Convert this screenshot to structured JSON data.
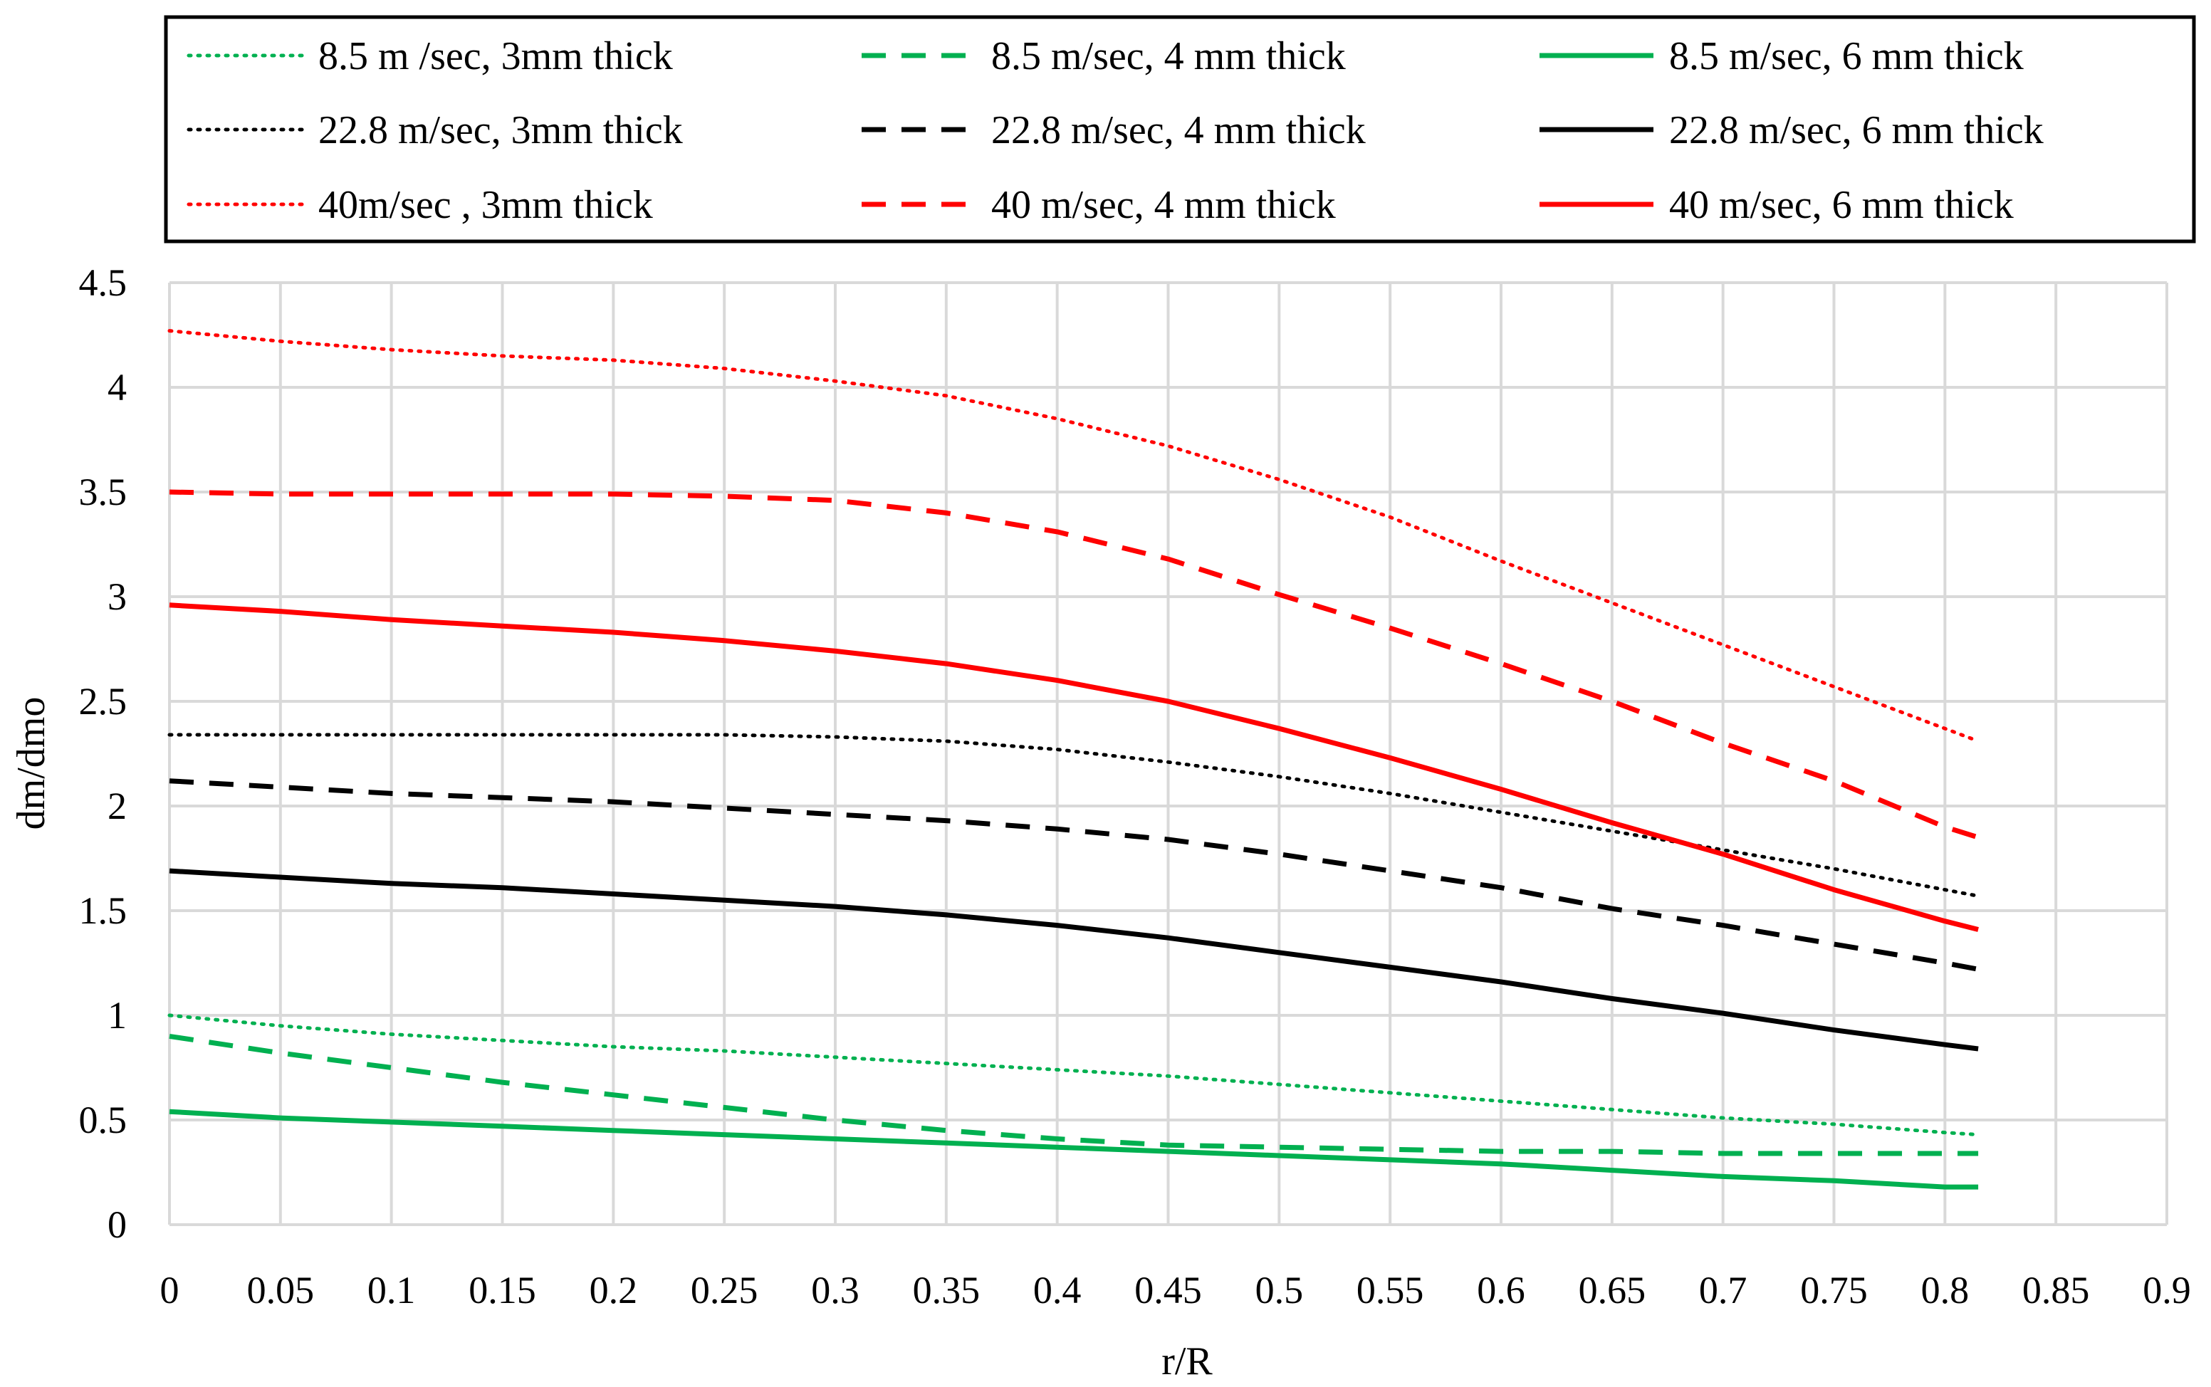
{
  "chart_data": {
    "type": "line",
    "title": "",
    "xlabel": "r/R",
    "ylabel": "dm/dmo",
    "xlim": [
      0,
      0.9
    ],
    "ylim": [
      0,
      4.5
    ],
    "grid": true,
    "legend_position": "top",
    "x_ticks": [
      0,
      0.05,
      0.1,
      0.15,
      0.2,
      0.25,
      0.3,
      0.35,
      0.4,
      0.45,
      0.5,
      0.55,
      0.6,
      0.65,
      0.7,
      0.75,
      0.8,
      0.85,
      0.9
    ],
    "x_tick_labels": [
      "0",
      "0.05",
      "0.1",
      "0.15",
      "0.2",
      "0.25",
      "0.3",
      "0.35",
      "0.4",
      "0.45",
      "0.5",
      "0.55",
      "0.6",
      "0.65",
      "0.7",
      "0.75",
      "0.8",
      "0.85",
      "0.9"
    ],
    "y_ticks": [
      0,
      0.5,
      1,
      1.5,
      2,
      2.5,
      3,
      3.5,
      4,
      4.5
    ],
    "y_tick_labels": [
      "0",
      "0.5",
      "1",
      "1.5",
      "2",
      "2.5",
      "3",
      "3.5",
      "4",
      "4.5"
    ],
    "x": [
      0,
      0.05,
      0.1,
      0.15,
      0.2,
      0.25,
      0.3,
      0.35,
      0.4,
      0.45,
      0.5,
      0.55,
      0.6,
      0.65,
      0.7,
      0.75,
      0.8,
      0.815
    ],
    "series": [
      {
        "name": "8.5 m /sec, 3mm thick",
        "color": "#00b050",
        "style": "dotted",
        "values": [
          1.0,
          0.95,
          0.91,
          0.88,
          0.85,
          0.83,
          0.8,
          0.77,
          0.74,
          0.71,
          0.67,
          0.63,
          0.59,
          0.55,
          0.51,
          0.48,
          0.44,
          0.43
        ]
      },
      {
        "name": "8.5 m/sec, 4 mm thick",
        "color": "#00b050",
        "style": "dashed",
        "values": [
          0.9,
          0.82,
          0.75,
          0.68,
          0.62,
          0.56,
          0.5,
          0.45,
          0.41,
          0.38,
          0.37,
          0.36,
          0.35,
          0.35,
          0.34,
          0.34,
          0.34,
          0.34
        ]
      },
      {
        "name": "8.5 m/sec, 6 mm thick",
        "color": "#00b050",
        "style": "solid",
        "values": [
          0.54,
          0.51,
          0.49,
          0.47,
          0.45,
          0.43,
          0.41,
          0.39,
          0.37,
          0.35,
          0.33,
          0.31,
          0.29,
          0.26,
          0.23,
          0.21,
          0.18,
          0.18
        ]
      },
      {
        "name": "22.8 m/sec, 3mm thick",
        "color": "#000000",
        "style": "dotted",
        "values": [
          2.34,
          2.34,
          2.34,
          2.34,
          2.34,
          2.34,
          2.33,
          2.31,
          2.27,
          2.21,
          2.14,
          2.06,
          1.97,
          1.88,
          1.79,
          1.7,
          1.6,
          1.57
        ]
      },
      {
        "name": "22.8 m/sec, 4 mm thick",
        "color": "#000000",
        "style": "dashed",
        "values": [
          2.12,
          2.09,
          2.06,
          2.04,
          2.02,
          1.99,
          1.96,
          1.93,
          1.89,
          1.84,
          1.77,
          1.69,
          1.61,
          1.51,
          1.43,
          1.34,
          1.25,
          1.22
        ]
      },
      {
        "name": "22.8 m/sec, 6 mm thick",
        "color": "#000000",
        "style": "solid",
        "values": [
          1.69,
          1.66,
          1.63,
          1.61,
          1.58,
          1.55,
          1.52,
          1.48,
          1.43,
          1.37,
          1.3,
          1.23,
          1.16,
          1.08,
          1.01,
          0.93,
          0.86,
          0.84
        ]
      },
      {
        "name": "40m/sec , 3mm thick",
        "color": "#ff0000",
        "style": "dotted",
        "values": [
          4.27,
          4.22,
          4.18,
          4.15,
          4.13,
          4.09,
          4.03,
          3.96,
          3.85,
          3.72,
          3.56,
          3.38,
          3.17,
          2.97,
          2.77,
          2.57,
          2.37,
          2.31
        ]
      },
      {
        "name": "40 m/sec, 4 mm thick",
        "color": "#ff0000",
        "style": "dashed",
        "values": [
          3.5,
          3.49,
          3.49,
          3.49,
          3.49,
          3.48,
          3.46,
          3.4,
          3.31,
          3.18,
          3.01,
          2.85,
          2.68,
          2.5,
          2.3,
          2.12,
          1.9,
          1.85
        ]
      },
      {
        "name": "40 m/sec, 6 mm thick",
        "color": "#ff0000",
        "style": "solid",
        "values": [
          2.96,
          2.93,
          2.89,
          2.86,
          2.83,
          2.79,
          2.74,
          2.68,
          2.6,
          2.5,
          2.37,
          2.23,
          2.08,
          1.92,
          1.77,
          1.6,
          1.45,
          1.41
        ]
      }
    ],
    "legend_order": [
      0,
      1,
      2,
      3,
      4,
      5,
      6,
      7,
      8
    ]
  }
}
